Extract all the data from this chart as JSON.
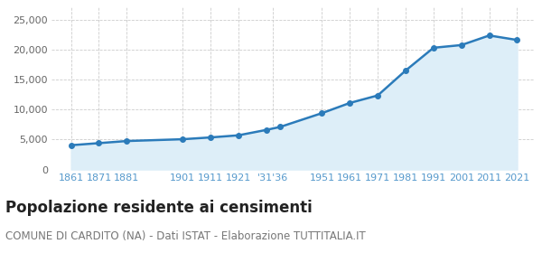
{
  "years": [
    1861,
    1871,
    1881,
    1901,
    1911,
    1921,
    1931,
    1936,
    1951,
    1961,
    1971,
    1981,
    1991,
    2001,
    2011,
    2021
  ],
  "population": [
    4050,
    4400,
    4750,
    5050,
    5350,
    5700,
    6600,
    7100,
    9400,
    11100,
    12350,
    16500,
    20300,
    20750,
    22350,
    21600
  ],
  "line_color": "#2b7bba",
  "fill_color": "#ddeef8",
  "marker_color": "#2b7bba",
  "background_color": "#ffffff",
  "plot_bg_color": "#ffffff",
  "grid_color": "#cccccc",
  "title": "Popolazione residente ai censimenti",
  "subtitle": "COMUNE DI CARDITO (NA) - Dati ISTAT - Elaborazione TUTTITALIA.IT",
  "ylim": [
    0,
    27000
  ],
  "yticks": [
    0,
    5000,
    10000,
    15000,
    20000,
    25000
  ],
  "title_fontsize": 12,
  "subtitle_fontsize": 8.5,
  "tick_color": "#5599cc",
  "ytick_color": "#666666",
  "tick_fontsize": 8
}
